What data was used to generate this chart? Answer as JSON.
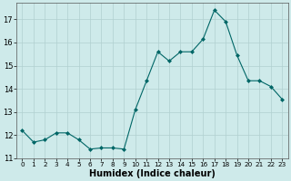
{
  "x": [
    0,
    1,
    2,
    3,
    4,
    5,
    6,
    7,
    8,
    9,
    10,
    11,
    12,
    13,
    14,
    15,
    16,
    17,
    18,
    19,
    20,
    21,
    22,
    23
  ],
  "y": [
    12.2,
    11.7,
    11.8,
    12.1,
    12.1,
    11.8,
    11.4,
    11.45,
    11.45,
    11.4,
    13.1,
    14.35,
    15.6,
    15.2,
    15.6,
    15.6,
    16.15,
    17.4,
    16.9,
    15.45,
    14.35,
    14.35,
    14.1,
    13.55
  ],
  "xlabel": "Humidex (Indice chaleur)",
  "ylim": [
    11,
    17.7
  ],
  "yticks": [
    11,
    12,
    13,
    14,
    15,
    16,
    17
  ],
  "xticks": [
    0,
    1,
    2,
    3,
    4,
    5,
    6,
    7,
    8,
    9,
    10,
    11,
    12,
    13,
    14,
    15,
    16,
    17,
    18,
    19,
    20,
    21,
    22,
    23
  ],
  "line_color": "#006666",
  "marker_color": "#006666",
  "bg_color": "#ceeaea",
  "grid_color": "#b0d0d0",
  "xlabel_fontsize": 7,
  "tick_fontsize": 6.5
}
